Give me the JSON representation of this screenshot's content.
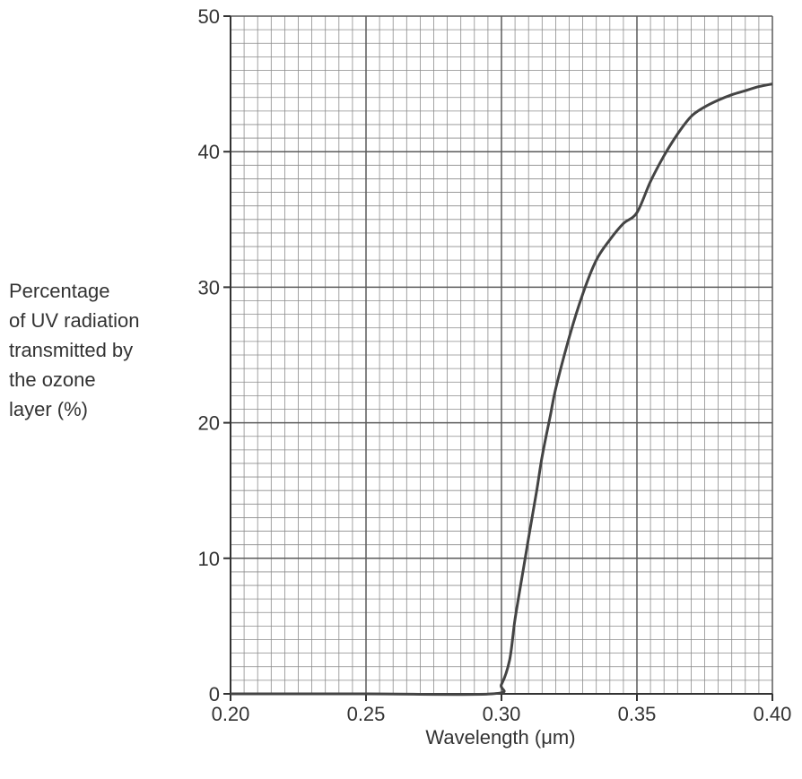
{
  "chart_data": {
    "type": "line",
    "title": "",
    "xlabel": "Wavelength (μm)",
    "ylabel_lines": [
      "Percentage",
      "of UV radiation",
      "transmitted by",
      "the ozone",
      "layer (%)"
    ],
    "xlim": [
      0.2,
      0.4
    ],
    "ylim": [
      0,
      50
    ],
    "x_ticks": [
      0.2,
      0.25,
      0.3,
      0.35,
      0.4
    ],
    "x_tick_labels": [
      "0.20",
      "0.25",
      "0.30",
      "0.35",
      "0.40"
    ],
    "y_ticks": [
      0,
      10,
      20,
      30,
      40,
      50
    ],
    "y_tick_labels": [
      "0",
      "10",
      "20",
      "30",
      "40",
      "50"
    ],
    "grid": "major and minor",
    "series": [
      {
        "color": "#444444",
        "x": [
          0.2,
          0.25,
          0.2965,
          0.3,
          0.303,
          0.305,
          0.3075,
          0.31,
          0.313,
          0.315,
          0.318,
          0.32,
          0.325,
          0.33,
          0.335,
          0.34,
          0.345,
          0.35,
          0.355,
          0.36,
          0.365,
          0.37,
          0.375,
          0.38,
          0.385,
          0.39,
          0.395,
          0.4
        ],
        "y": [
          0,
          0,
          0,
          0.7,
          2.5,
          5.5,
          8.5,
          11.5,
          15.0,
          17.5,
          20.5,
          22.5,
          26.3,
          29.5,
          32.0,
          33.5,
          34.7,
          35.5,
          37.8,
          39.7,
          41.3,
          42.6,
          43.3,
          43.8,
          44.2,
          44.5,
          44.8,
          45.0
        ]
      }
    ]
  }
}
